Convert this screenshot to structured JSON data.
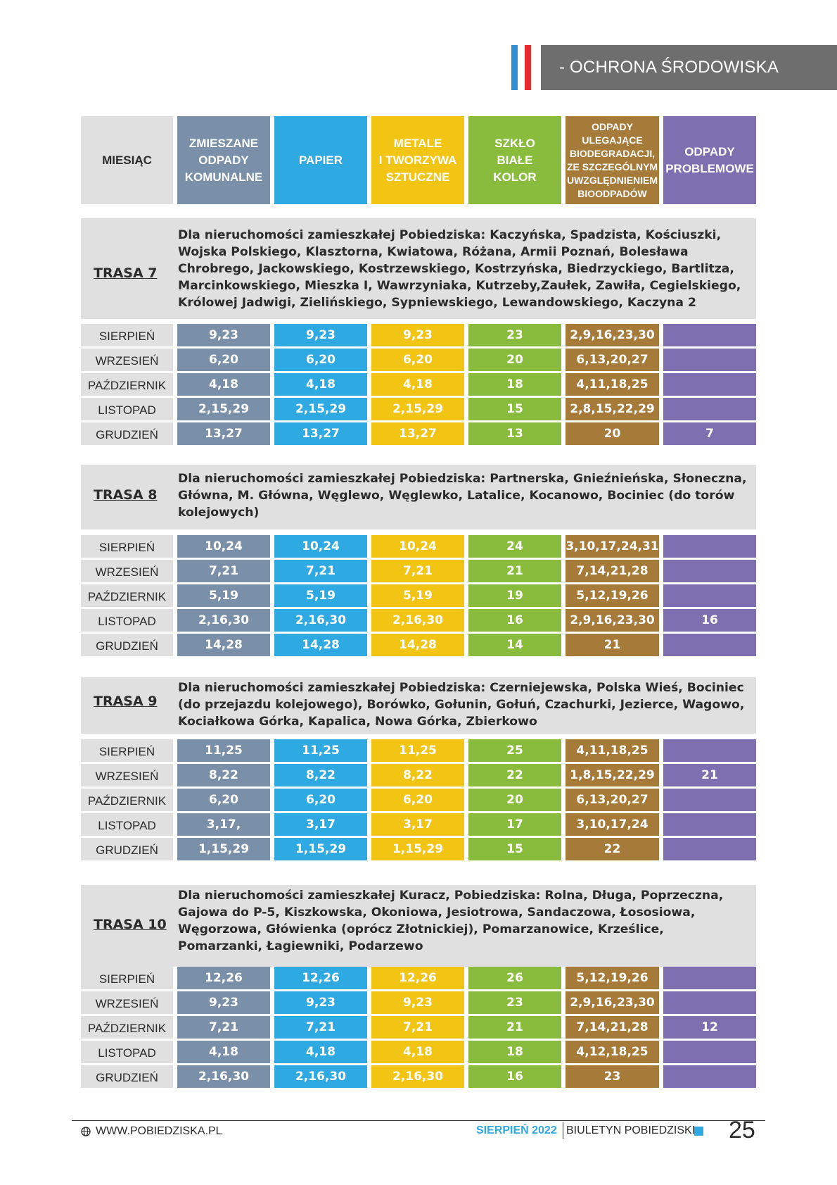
{
  "section": {
    "title": "- OCHRONA ŚRODOWISKA"
  },
  "header": {
    "month": "MIESIĄC",
    "mixed": "ZMIESZANE\nODPADY\nKOMUNALNE",
    "paper": "PAPIER",
    "metals": "METALE\nI TWORZYWA\nSZTUCZNE",
    "glass": "SZKŁO\nBIAŁE\nKOLOR",
    "bio": "ODPADY ULEGAJĄCE\nBIODEGRADACJI,\nZE SZCZEGÓLNYM\nUWZGLĘDNIENIEM\nBIOODPADÓW",
    "problem": "ODPADY\nPROBLEMOWE"
  },
  "colors": {
    "mixed": "#7a8fa8",
    "paper": "#2fa9e1",
    "metals": "#f2c414",
    "glass": "#89bc3d",
    "bio": "#a67a38",
    "problem": "#7e6fb0",
    "accent_blue": "#2d8fd6",
    "accent_red": "#e52a2f"
  },
  "routes": [
    {
      "label": "TRASA 7",
      "desc": "Dla nieruchomości zamieszkałej Pobiedziska: Kaczyńska, Spadzista, Kościuszki, Wojska Polskiego, Klasztorna, Kwiatowa, Różana, Armii Poznań, Bolesława Chrobrego, Jackowskiego, Kostrzewskiego, Kostrzyńska, Biedrzyckiego, Bartlitza, Marcinkowskiego, Mieszka I, Wawrzyniaka, Kutrzeby,Zaułek, Zawiła, Cegielskiego, Królowej Jadwigi, Zielińskiego, Sypniewskiego, Lewandowskiego, Kaczyna 2",
      "rows": [
        {
          "month": "SIERPIEŃ",
          "mixed": "9,23",
          "paper": "9,23",
          "metals": "9,23",
          "glass": "23",
          "bio": "2,9,16,23,30",
          "problem": ""
        },
        {
          "month": "WRZESIEŃ",
          "mixed": "6,20",
          "paper": "6,20",
          "metals": "6,20",
          "glass": "20",
          "bio": "6,13,20,27",
          "problem": ""
        },
        {
          "month": "PAŹDZIERNIK",
          "mixed": "4,18",
          "paper": "4,18",
          "metals": "4,18",
          "glass": "18",
          "bio": "4,11,18,25",
          "problem": ""
        },
        {
          "month": "LISTOPAD",
          "mixed": "2,15,29",
          "paper": "2,15,29",
          "metals": "2,15,29",
          "glass": "15",
          "bio": "2,8,15,22,29",
          "problem": ""
        },
        {
          "month": "GRUDZIEŃ",
          "mixed": "13,27",
          "paper": "13,27",
          "metals": "13,27",
          "glass": "13",
          "bio": "20",
          "problem": "7"
        }
      ]
    },
    {
      "label": "TRASA 8",
      "desc": "Dla nieruchomości zamieszkałej Pobiedziska: Partnerska, Gnieźnieńska, Słoneczna, Główna, M. Główna, Węglewo, Węglewko, Latalice, Kocanowo, Bociniec (do torów kolejowych)",
      "rows": [
        {
          "month": "SIERPIEŃ",
          "mixed": "10,24",
          "paper": "10,24",
          "metals": "10,24",
          "glass": "24",
          "bio": "3,10,17,24,31",
          "problem": ""
        },
        {
          "month": "WRZESIEŃ",
          "mixed": "7,21",
          "paper": "7,21",
          "metals": "7,21",
          "glass": "21",
          "bio": "7,14,21,28",
          "problem": ""
        },
        {
          "month": "PAŹDZIERNIK",
          "mixed": "5,19",
          "paper": "5,19",
          "metals": "5,19",
          "glass": "19",
          "bio": "5,12,19,26",
          "problem": ""
        },
        {
          "month": "LISTOPAD",
          "mixed": "2,16,30",
          "paper": "2,16,30",
          "metals": "2,16,30",
          "glass": "16",
          "bio": "2,9,16,23,30",
          "problem": "16"
        },
        {
          "month": "GRUDZIEŃ",
          "mixed": "14,28",
          "paper": "14,28",
          "metals": "14,28",
          "glass": "14",
          "bio": "21",
          "problem": ""
        }
      ]
    },
    {
      "label": "TRASA 9",
      "desc": "Dla nieruchomości zamieszkałej Pobiedziska: Czerniejewska, Polska Wieś, Bociniec (do przejazdu kolejowego), Borówko, Gołunin, Gołuń, Czachurki, Jezierce, Wagowo, Kociałkowa Górka, Kapalica, Nowa Górka, Zbierkowo",
      "rows": [
        {
          "month": "SIERPIEŃ",
          "mixed": "11,25",
          "paper": "11,25",
          "metals": "11,25",
          "glass": "25",
          "bio": "4,11,18,25",
          "problem": ""
        },
        {
          "month": "WRZESIEŃ",
          "mixed": "8,22",
          "paper": "8,22",
          "metals": "8,22",
          "glass": "22",
          "bio": "1,8,15,22,29",
          "problem": "21"
        },
        {
          "month": "PAŹDZIERNIK",
          "mixed": "6,20",
          "paper": "6,20",
          "metals": "6,20",
          "glass": "20",
          "bio": "6,13,20,27",
          "problem": ""
        },
        {
          "month": "LISTOPAD",
          "mixed": "3,17,",
          "paper": "3,17",
          "metals": "3,17",
          "glass": "17",
          "bio": "3,10,17,24",
          "problem": ""
        },
        {
          "month": "GRUDZIEŃ",
          "mixed": "1,15,29",
          "paper": "1,15,29",
          "metals": "1,15,29",
          "glass": "15",
          "bio": "22",
          "problem": ""
        }
      ]
    },
    {
      "label": "TRASA 10",
      "desc": "Dla nieruchomości zamieszkałej Kuracz, Pobiedziska: Rolna, Długa, Poprzeczna, Gajowa do P-5, Kiszkowska, Okoniowa, Jesiotrowa, Sandaczowa, Łososiowa, Węgorzowa, Główienka (oprócz Złotnickiej), Pomarzanowice, Krześlice, Pomarzanki, Łagiewniki, Podarzewo",
      "rows": [
        {
          "month": "SIERPIEŃ",
          "mixed": "12,26",
          "paper": "12,26",
          "metals": "12,26",
          "glass": "26",
          "bio": "5,12,19,26",
          "problem": ""
        },
        {
          "month": "WRZESIEŃ",
          "mixed": "9,23",
          "paper": "9,23",
          "metals": "9,23",
          "glass": "23",
          "bio": "2,9,16,23,30",
          "problem": ""
        },
        {
          "month": "PAŹDZIERNIK",
          "mixed": "7,21",
          "paper": "7,21",
          "metals": "7,21",
          "glass": "21",
          "bio": "7,14,21,28",
          "problem": "12"
        },
        {
          "month": "LISTOPAD",
          "mixed": "4,18",
          "paper": "4,18",
          "metals": "4,18",
          "glass": "18",
          "bio": "4,12,18,25",
          "problem": ""
        },
        {
          "month": "GRUDZIEŃ",
          "mixed": "2,16,30",
          "paper": "2,16,30",
          "metals": "2,16,30",
          "glass": "16",
          "bio": "23",
          "problem": ""
        }
      ]
    }
  ],
  "footer": {
    "website": "WWW.POBIEDZISKA.PL",
    "date": "SIERPIEŃ 2022",
    "publication": "BIULETYN POBIEDZISKI",
    "page_number": "25"
  }
}
